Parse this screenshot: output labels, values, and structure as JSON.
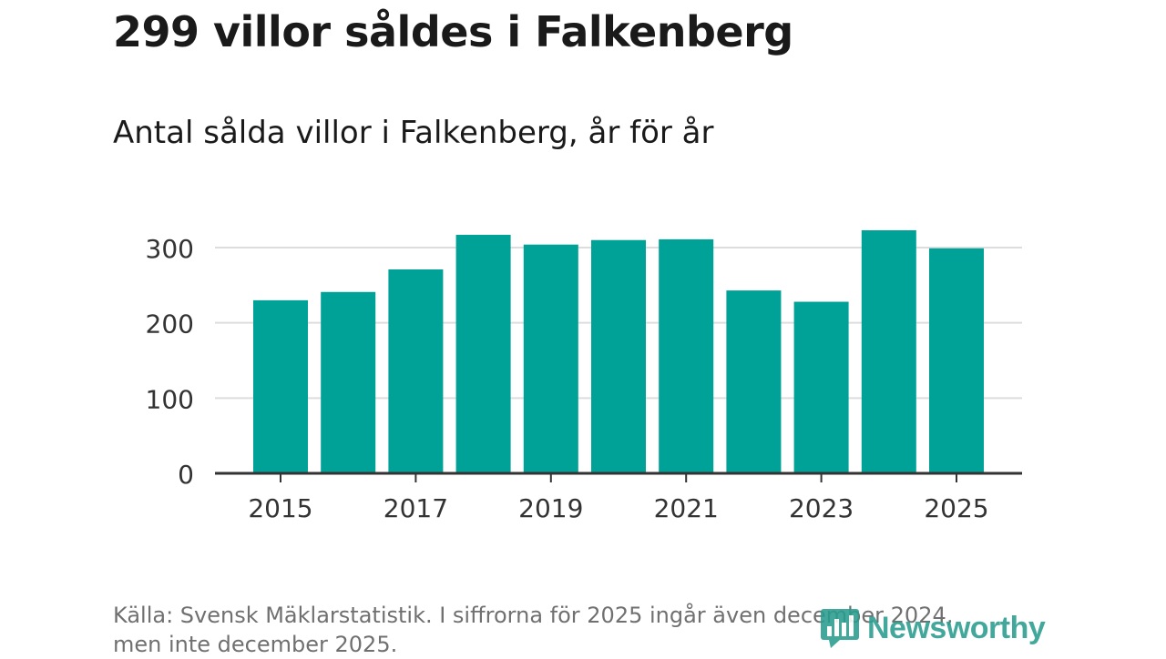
{
  "title": "299 villor såldes i Falkenberg",
  "subtitle": "Antal sålda villor i Falkenberg, år för år",
  "source": {
    "line1": "Källa: Svensk Mäklarstatistik. I siffrorna för 2025 ingår även december 2024,",
    "line2": "men inte december 2025."
  },
  "logo": {
    "name": "Newsworthy",
    "icon": "bar-chart-logo-icon"
  },
  "colors": {
    "bar": "#00a197",
    "grid": "#dddddd",
    "axis": "#333333",
    "text": "#333333",
    "logo": "#2a9d8f"
  },
  "chart_data": {
    "type": "bar",
    "categories": [
      "2015",
      "2016",
      "2017",
      "2018",
      "2019",
      "2020",
      "2021",
      "2022",
      "2023",
      "2024",
      "2025"
    ],
    "values": [
      230,
      241,
      271,
      317,
      304,
      310,
      311,
      243,
      228,
      323,
      299
    ],
    "x_tick_labels": [
      "2015",
      "2017",
      "2019",
      "2021",
      "2023",
      "2025"
    ],
    "y_ticks": [
      0,
      100,
      200,
      300
    ],
    "ylim": [
      0,
      340
    ],
    "title": "Antal sålda villor i Falkenberg, år för år",
    "xlabel": "",
    "ylabel": "",
    "grid": true,
    "legend": "none"
  }
}
